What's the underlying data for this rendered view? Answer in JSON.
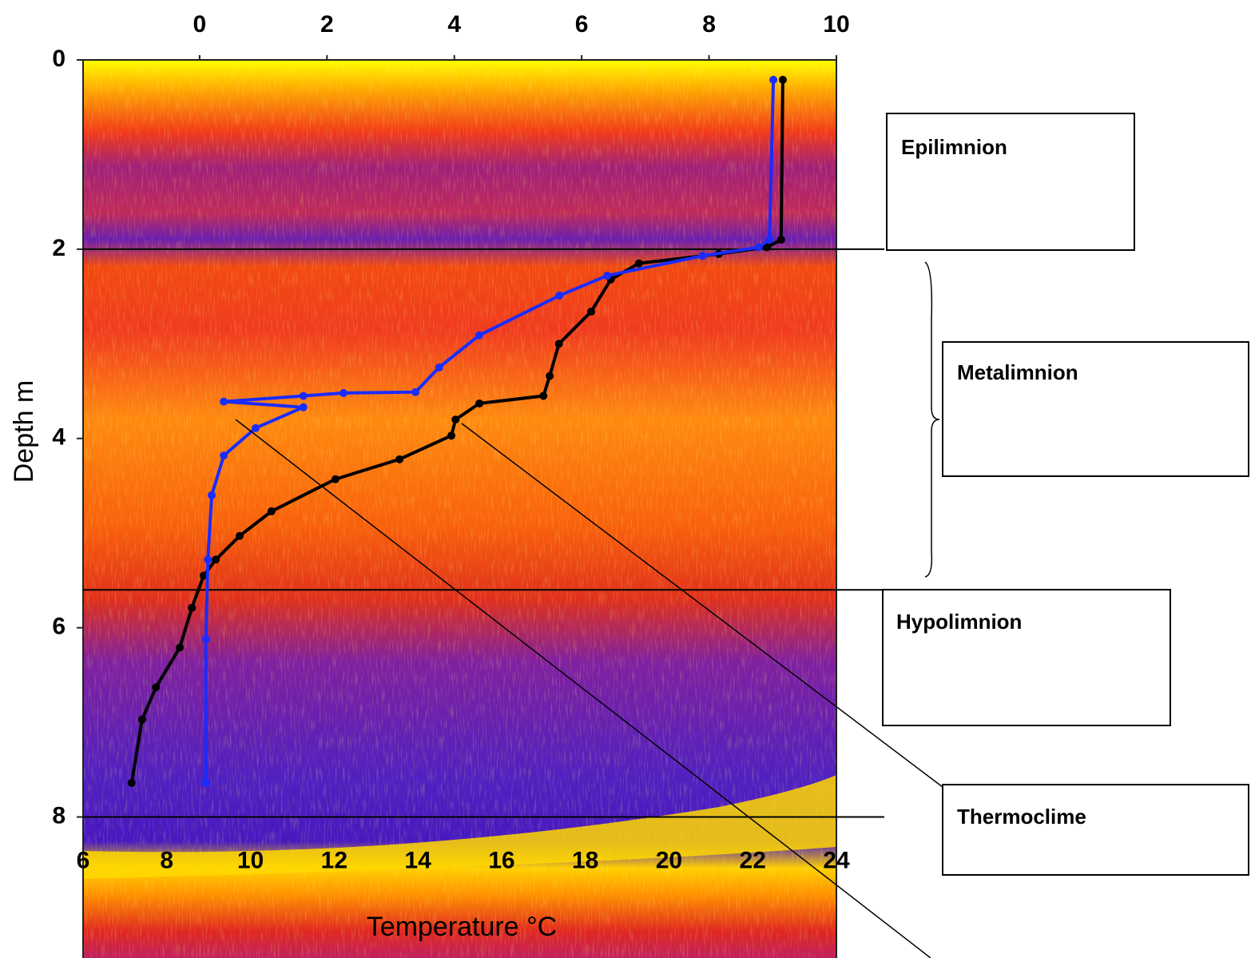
{
  "chart_data": {
    "type": "line",
    "xlabel": "Temperature °C",
    "ylabel": "Depth m",
    "xlim": [
      6,
      24
    ],
    "xticks": [
      6,
      8,
      10,
      12,
      14,
      16,
      18,
      20,
      22,
      24
    ],
    "x2lim": [
      -1.83,
      10
    ],
    "x2ticks": [
      0,
      2,
      4,
      6,
      8,
      10
    ],
    "ylim": [
      0,
      9.49
    ],
    "yticks": [
      0,
      2,
      4,
      6,
      8
    ],
    "y_inverted": true,
    "hlines": [
      2,
      5.6,
      8
    ],
    "series": [
      {
        "color": "#000000",
        "axis": "x",
        "x": [
          22.72,
          22.68,
          22.34,
          21.19,
          19.28,
          18.61,
          18.14,
          17.37,
          17.15,
          17.0,
          15.47,
          14.9,
          14.8,
          13.56,
          12.03,
          10.5,
          9.74,
          9.17,
          8.88,
          8.6,
          8.31,
          7.74,
          7.41,
          7.16
        ],
        "values": [
          0.21,
          1.9,
          1.98,
          2.05,
          2.15,
          2.32,
          2.66,
          3.0,
          3.34,
          3.55,
          3.63,
          3.8,
          3.97,
          4.22,
          4.43,
          4.77,
          5.03,
          5.28,
          5.45,
          5.79,
          6.21,
          6.63,
          6.97,
          7.64
        ]
      },
      {
        "color": "#1a2cff",
        "axis": "x2",
        "x": [
          9.01,
          8.95,
          8.78,
          7.9,
          6.4,
          5.65,
          4.39,
          3.76,
          3.39,
          2.26,
          1.63,
          0.38,
          1.63,
          0.88,
          0.38,
          0.19,
          0.13,
          0.1,
          0.1
        ],
        "values": [
          0.21,
          1.9,
          1.98,
          2.07,
          2.28,
          2.49,
          2.91,
          3.25,
          3.51,
          3.52,
          3.55,
          3.61,
          3.67,
          3.89,
          4.18,
          4.6,
          5.28,
          6.12,
          7.64
        ]
      }
    ],
    "annotations": [
      "Epilimnion",
      "Metalimnion",
      "Hypolimnion",
      "Thermoclime"
    ]
  }
}
